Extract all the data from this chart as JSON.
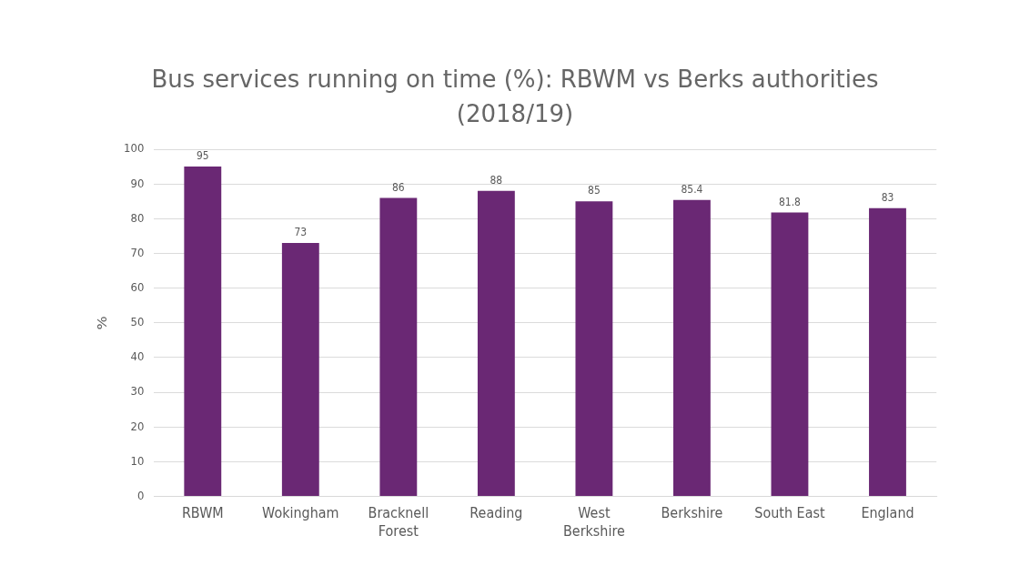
{
  "chart_data": {
    "type": "bar",
    "title": "Bus services running on time (%): RBWM vs Berks authorities (2018/19)",
    "ylabel": "%",
    "categories": [
      "RBWM",
      "Wokingham",
      "Bracknell Forest",
      "Reading",
      "West Berkshire",
      "Berkshire",
      "South East",
      "England"
    ],
    "values": [
      95,
      73,
      86,
      88,
      85,
      85.4,
      81.8,
      83
    ],
    "color": "#6a2874",
    "ylim": [
      0,
      100
    ],
    "yticks": [
      0,
      10,
      20,
      30,
      40,
      50,
      60,
      70,
      80,
      90,
      100
    ],
    "grid": "y",
    "data_labels": true,
    "legend": false
  }
}
